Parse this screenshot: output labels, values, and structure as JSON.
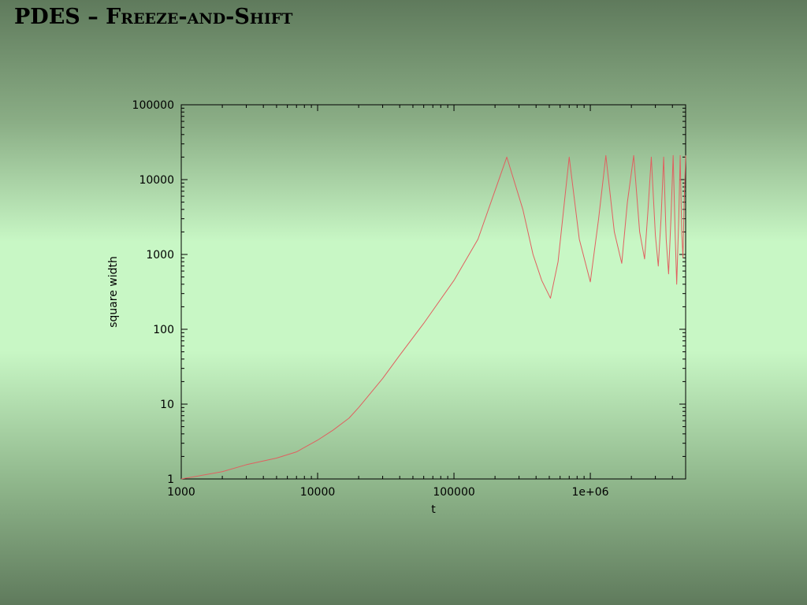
{
  "slide": {
    "title_prefix": "PDES – ",
    "title_main": "Freeze-and-Shift"
  },
  "chart_data": {
    "type": "line",
    "xlabel": "t",
    "ylabel": "square width",
    "xscale": "log",
    "yscale": "log",
    "xlim": [
      1000,
      5000000
    ],
    "ylim": [
      1,
      100000
    ],
    "grid": false,
    "x_ticks": [
      {
        "value": 1000,
        "label": "1000"
      },
      {
        "value": 10000,
        "label": "10000"
      },
      {
        "value": 100000,
        "label": "100000"
      },
      {
        "value": 1000000,
        "label": "1e+06"
      }
    ],
    "y_ticks": [
      {
        "value": 1,
        "label": "1"
      },
      {
        "value": 10,
        "label": "10"
      },
      {
        "value": 100,
        "label": "100"
      },
      {
        "value": 1000,
        "label": "1000"
      },
      {
        "value": 10000,
        "label": "10000"
      },
      {
        "value": 100000,
        "label": "100000"
      }
    ],
    "series": [
      {
        "color": "#e06060",
        "points": [
          [
            1000,
            1.0
          ],
          [
            2000,
            1.25
          ],
          [
            3000,
            1.55
          ],
          [
            5000,
            1.9
          ],
          [
            7000,
            2.3
          ],
          [
            10000,
            3.3
          ],
          [
            13000,
            4.5
          ],
          [
            17000,
            6.5
          ],
          [
            20000,
            9
          ],
          [
            30000,
            22
          ],
          [
            40000,
            45
          ],
          [
            60000,
            120
          ],
          [
            100000,
            450
          ],
          [
            150000,
            1600
          ],
          [
            244000,
            20000
          ],
          [
            320000,
            4000
          ],
          [
            380000,
            1000
          ],
          [
            440000,
            450
          ],
          [
            510000,
            260
          ],
          [
            580000,
            800
          ],
          [
            700000,
            20000
          ],
          [
            830000,
            1600
          ],
          [
            1000000,
            430
          ],
          [
            1150000,
            3000
          ],
          [
            1300000,
            21000
          ],
          [
            1500000,
            2000
          ],
          [
            1700000,
            760
          ],
          [
            1870000,
            5000
          ],
          [
            2080000,
            21000
          ],
          [
            2300000,
            2000
          ],
          [
            2500000,
            870
          ],
          [
            2650000,
            4000
          ],
          [
            2800000,
            20000
          ],
          [
            3000000,
            1800
          ],
          [
            3150000,
            700
          ],
          [
            3300000,
            3000
          ],
          [
            3450000,
            20000
          ],
          [
            3600000,
            1600
          ],
          [
            3750000,
            550
          ],
          [
            3900000,
            3000
          ],
          [
            4050000,
            21000
          ],
          [
            4200000,
            1600
          ],
          [
            4300000,
            400
          ],
          [
            4450000,
            3000
          ],
          [
            4560000,
            21000
          ],
          [
            4680000,
            2000
          ],
          [
            4780000,
            900
          ],
          [
            4880000,
            5000
          ],
          [
            5000000,
            21000
          ]
        ]
      }
    ]
  }
}
